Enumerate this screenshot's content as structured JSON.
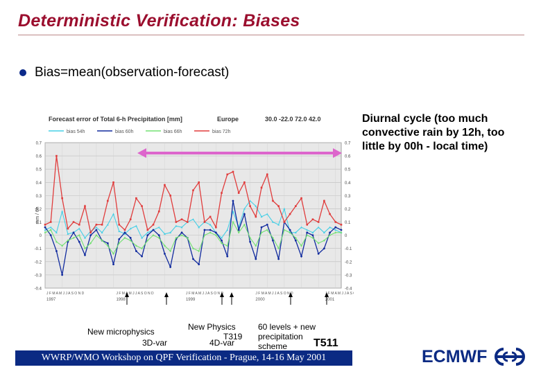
{
  "title": "Deterministic Verification: Biases",
  "bullet": "Bias=mean(observation-forecast)",
  "note": "Diurnal cycle (too much convective rain by 12h, too little by 00h - local time)",
  "annotations": {
    "microphysics": "New microphysics",
    "var3d": "3D-var",
    "physics": "New Physics",
    "t319": "T319",
    "var4d": "4D-var",
    "levels": "60 levels + new precipitation scheme",
    "t511": "T511"
  },
  "footer": "WWRP/WMO Workshop on QPF Verification - Prague, 14-16 May 2001",
  "brand": "ECMWF",
  "colors": {
    "title": "#9b0e2e",
    "footer_bg": "#0b2a83",
    "bias54": "#45cfe6",
    "bias60": "#102a9e",
    "bias66": "#72e072",
    "bias72": "#e03c3c",
    "range_arrow": "#dd66cc",
    "plot_bg": "#e8e8e8"
  },
  "chart_data": {
    "type": "line",
    "title": "Forecast error of Total 6-h Precipitation [mm]",
    "region": "Europe",
    "domain_text": "30.0 -22.0 72.0 42.0",
    "ylabel": "mm / 6h",
    "ylim": [
      -0.4,
      0.7
    ],
    "yticks": [
      "0.7",
      "0.6",
      "0.5",
      "0.4",
      "0.3",
      "0.2",
      "0.1",
      "0",
      "-0.1",
      "-0.2",
      "-0.3",
      "-0.4"
    ],
    "x_year_labels": [
      "1997",
      "1998",
      "1999",
      "2000",
      "2001"
    ],
    "x_month_labels": "J F M A M J J A S O N D",
    "xlim": [
      0,
      52
    ],
    "series": [
      {
        "name": "bias 54h",
        "color": "#45cfe6",
        "marker": "triangle",
        "values": [
          0.04,
          0.06,
          0.02,
          0.18,
          0.01,
          0.02,
          0.05,
          -0.02,
          0.03,
          0.06,
          0.02,
          0.08,
          0.16,
          0.03,
          0.01,
          0.05,
          0.07,
          -0.02,
          0.02,
          0.04,
          0.06,
          0.01,
          0.02,
          0.07,
          0.06,
          0.1,
          0.12,
          0.06,
          0.1,
          0.08,
          0.02,
          -0.02,
          0.04,
          0.18,
          0.06,
          0.2,
          0.26,
          0.22,
          0.14,
          0.16,
          0.1,
          0.08,
          0.2,
          0.02,
          0.02,
          0.06,
          0.04,
          0.02,
          0.06,
          0.02,
          0.06,
          0.04,
          0.02
        ]
      },
      {
        "name": "bias 60h",
        "color": "#102a9e",
        "marker": "circle",
        "values": [
          0.06,
          0.0,
          -0.12,
          -0.3,
          -0.05,
          0.02,
          -0.05,
          -0.15,
          0.0,
          0.04,
          -0.04,
          -0.06,
          -0.22,
          -0.03,
          0.02,
          -0.02,
          -0.12,
          -0.16,
          0.0,
          0.04,
          0.0,
          -0.14,
          -0.24,
          -0.03,
          0.02,
          -0.02,
          -0.18,
          -0.22,
          0.04,
          0.04,
          0.02,
          -0.04,
          -0.16,
          0.26,
          0.04,
          0.16,
          -0.05,
          -0.18,
          0.06,
          0.08,
          -0.04,
          -0.18,
          0.1,
          0.04,
          -0.04,
          -0.16,
          0.02,
          0.0,
          -0.14,
          -0.1,
          0.02,
          0.06,
          0.04
        ]
      },
      {
        "name": "bias 66h",
        "color": "#72e072",
        "marker": "diamond",
        "values": [
          0.02,
          0.04,
          -0.05,
          -0.08,
          -0.04,
          -0.02,
          0.0,
          -0.1,
          -0.06,
          0.0,
          -0.04,
          -0.08,
          -0.14,
          -0.06,
          -0.02,
          -0.04,
          -0.08,
          -0.1,
          -0.04,
          0.0,
          -0.02,
          -0.08,
          -0.12,
          -0.02,
          0.0,
          -0.02,
          -0.1,
          -0.12,
          0.0,
          0.02,
          0.0,
          -0.06,
          -0.08,
          0.1,
          0.02,
          0.08,
          -0.02,
          -0.08,
          0.02,
          0.04,
          -0.02,
          -0.1,
          0.04,
          0.02,
          -0.02,
          -0.08,
          0.0,
          -0.02,
          -0.06,
          -0.04,
          0.0,
          0.02,
          0.02
        ]
      },
      {
        "name": "bias 72h",
        "color": "#e03c3c",
        "marker": "square",
        "values": [
          0.08,
          0.1,
          0.6,
          0.28,
          0.05,
          0.1,
          0.08,
          0.22,
          0.02,
          0.08,
          0.08,
          0.26,
          0.4,
          0.08,
          0.04,
          0.12,
          0.28,
          0.22,
          0.04,
          0.08,
          0.18,
          0.38,
          0.3,
          0.1,
          0.12,
          0.1,
          0.34,
          0.4,
          0.1,
          0.14,
          0.06,
          0.32,
          0.46,
          0.48,
          0.32,
          0.4,
          0.22,
          0.14,
          0.36,
          0.46,
          0.26,
          0.22,
          0.1,
          0.16,
          0.22,
          0.28,
          0.08,
          0.12,
          0.1,
          0.26,
          0.16,
          0.1,
          0.08
        ]
      }
    ]
  }
}
